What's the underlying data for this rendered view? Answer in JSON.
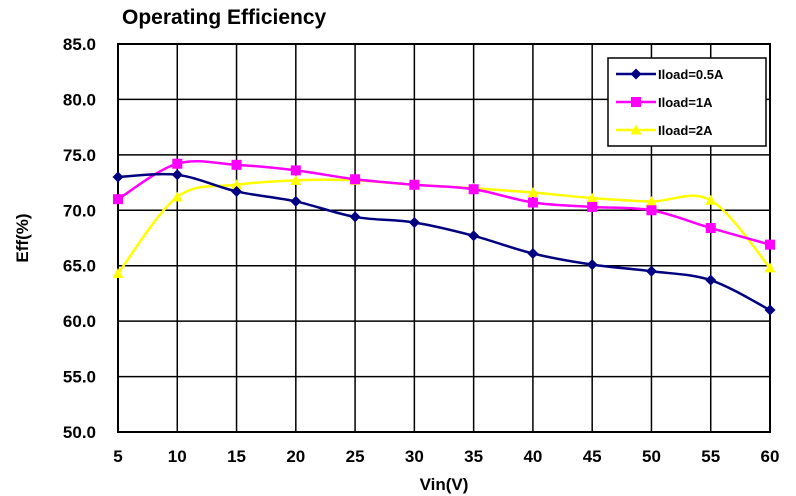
{
  "chart_data": {
    "type": "line",
    "title": "Operating Efficiency",
    "xlabel": "Vin(V)",
    "ylabel": "Eff(%)",
    "x": [
      5,
      10,
      15,
      20,
      25,
      30,
      35,
      40,
      45,
      50,
      55,
      60
    ],
    "xlim": [
      5,
      60
    ],
    "ylim": [
      50,
      85
    ],
    "xticks": [
      "5",
      "10",
      "15",
      "20",
      "25",
      "30",
      "35",
      "40",
      "45",
      "50",
      "55",
      "60"
    ],
    "yticks": [
      "50.0",
      "55.0",
      "60.0",
      "65.0",
      "70.0",
      "75.0",
      "80.0",
      "85.0"
    ],
    "grid": true,
    "legend_position": "top-right",
    "series": [
      {
        "name": "Iload=0.5A",
        "color": "#000080",
        "marker": "diamond",
        "values": [
          73.0,
          73.2,
          71.7,
          70.8,
          69.4,
          68.9,
          67.7,
          66.1,
          65.1,
          64.5,
          63.7,
          61.0
        ]
      },
      {
        "name": "Iload=1A",
        "color": "#FF00FF",
        "marker": "square",
        "values": [
          71.0,
          74.2,
          74.1,
          73.6,
          72.8,
          72.3,
          71.9,
          70.7,
          70.3,
          70.0,
          68.4,
          66.9
        ]
      },
      {
        "name": "Iload=2A",
        "color": "#FFFF00",
        "marker": "triangle",
        "values": [
          64.3,
          71.2,
          72.3,
          72.7,
          72.7,
          72.3,
          72.0,
          71.6,
          71.1,
          70.8,
          70.9,
          64.8
        ]
      }
    ]
  }
}
